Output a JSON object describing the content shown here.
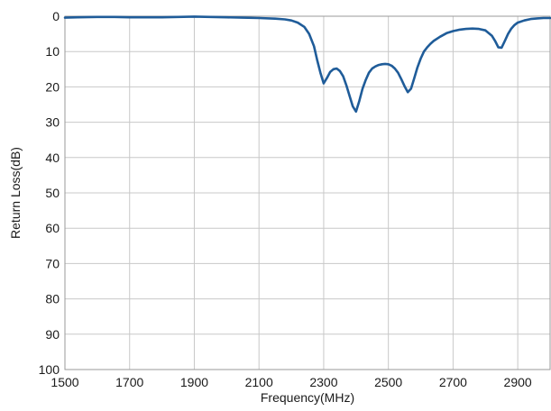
{
  "chart_data": {
    "type": "line",
    "title": "",
    "xlabel": "Frequency(MHz)",
    "ylabel": "Return Loss(dB)",
    "xlim": [
      1500,
      3000
    ],
    "ylim": [
      0,
      100
    ],
    "y_inverted": true,
    "grid": true,
    "legend": "none",
    "x_ticks": [
      1500,
      1700,
      1900,
      2100,
      2300,
      2500,
      2700,
      2900
    ],
    "y_ticks": [
      0,
      10,
      20,
      30,
      40,
      50,
      60,
      70,
      80,
      90,
      100
    ],
    "x_tick_labels": [
      "1500",
      "1700",
      "1900",
      "2100",
      "2300",
      "2500",
      "2700",
      "2900"
    ],
    "y_tick_labels": [
      "0",
      "10",
      "20",
      "30",
      "40",
      "50",
      "60",
      "70",
      "80",
      "90",
      "100"
    ],
    "colors": {
      "series": "#1f5c99",
      "grid": "#c8c8c8"
    },
    "series": [
      {
        "x": [
          1500,
          1540,
          1600,
          1650,
          1700,
          1750,
          1800,
          1850,
          1900,
          1950,
          2000,
          2050,
          2100,
          2150,
          2180,
          2200,
          2220,
          2240,
          2255,
          2270,
          2280,
          2290,
          2300,
          2310,
          2320,
          2330,
          2340,
          2350,
          2360,
          2370,
          2380,
          2390,
          2400,
          2410,
          2420,
          2430,
          2440,
          2450,
          2460,
          2470,
          2480,
          2490,
          2500,
          2510,
          2520,
          2530,
          2540,
          2550,
          2560,
          2570,
          2580,
          2590,
          2600,
          2610,
          2620,
          2630,
          2640,
          2660,
          2680,
          2700,
          2720,
          2740,
          2760,
          2780,
          2800,
          2820,
          2830,
          2840,
          2850,
          2860,
          2870,
          2880,
          2890,
          2900,
          2920,
          2940,
          2960,
          2980,
          3000
        ],
        "y": [
          0.4,
          0.3,
          0.2,
          0.2,
          0.3,
          0.3,
          0.3,
          0.2,
          0.1,
          0.2,
          0.3,
          0.4,
          0.5,
          0.7,
          0.9,
          1.2,
          1.8,
          3.0,
          5.0,
          8.5,
          12.5,
          16.0,
          19.0,
          17.5,
          15.8,
          15.0,
          14.8,
          15.5,
          17.0,
          19.5,
          22.5,
          25.5,
          27.0,
          24.0,
          20.5,
          18.0,
          16.0,
          14.8,
          14.2,
          13.8,
          13.6,
          13.5,
          13.6,
          14.0,
          14.8,
          16.0,
          17.8,
          19.8,
          21.5,
          20.5,
          17.5,
          14.5,
          12.0,
          10.0,
          8.8,
          7.8,
          7.0,
          5.8,
          4.8,
          4.2,
          3.8,
          3.6,
          3.5,
          3.6,
          4.0,
          5.5,
          7.0,
          8.8,
          8.9,
          7.0,
          5.0,
          3.5,
          2.5,
          1.8,
          1.2,
          0.8,
          0.6,
          0.5,
          0.5
        ]
      }
    ]
  }
}
